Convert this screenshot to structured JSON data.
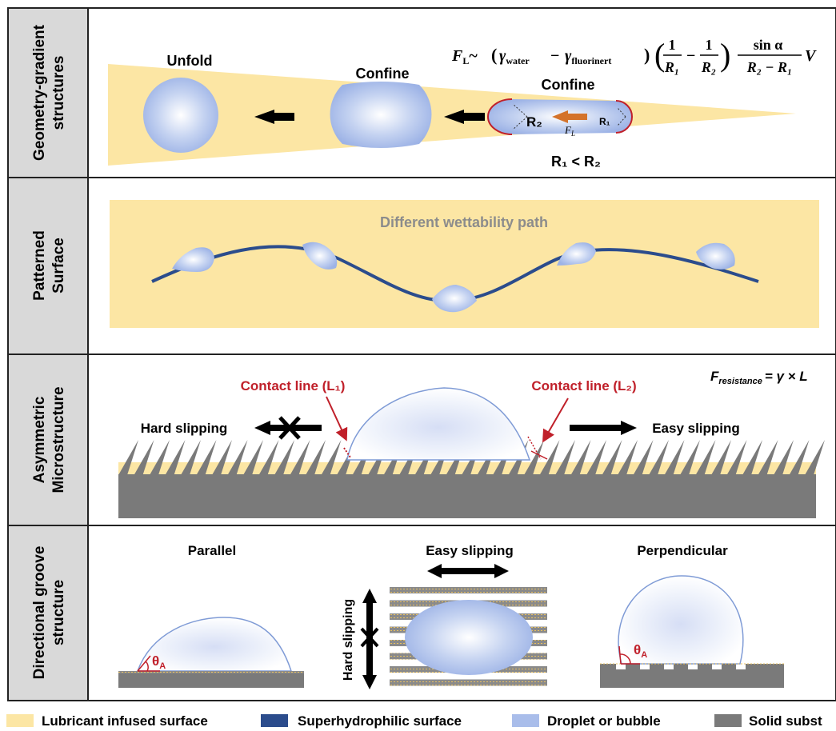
{
  "rows": [
    {
      "label_line1": "Geometry-gradient",
      "label_line2": "structures"
    },
    {
      "label_line1": "Patterned",
      "label_line2": "Surface"
    },
    {
      "label_line1": "Asymmetric",
      "label_line2": "Microstructure"
    },
    {
      "label_line1": "Directional groove",
      "label_line2": "structure"
    }
  ],
  "panel1": {
    "unfold": "Unfold",
    "confine_left": "Confine",
    "confine_right": "Confine",
    "r2_label": "R₂",
    "r1_label": "R₁",
    "force_label": "F",
    "force_sub": "L",
    "relation": "R₁ < R₂",
    "formula": {
      "lhs": "F",
      "lhs_sub": "L",
      "tilde": "~",
      "gamma_water": "γ",
      "water_sub": "water",
      "minus": "−",
      "gamma_fluor": "γ",
      "fluor_sub": "fluorinert",
      "frac1_num": "1",
      "frac1_den": "R₁",
      "frac2_num": "1",
      "frac2_den": "R₂",
      "sin_num": "sin α",
      "sin_den": "R₂ − R₁",
      "v": "V"
    }
  },
  "panel2": {
    "path_title": "Different wettability path"
  },
  "panel3": {
    "contact_left": "Contact line (L₁)",
    "contact_right": "Contact line (L₂)",
    "hard_slipping": "Hard slipping",
    "easy_slipping": "Easy slipping",
    "formula_f": "F",
    "formula_sub": "resistance",
    "formula_rhs": "= γ × L"
  },
  "panel4": {
    "parallel": "Parallel",
    "easy_slipping": "Easy slipping",
    "hard_slipping": "Hard slipping",
    "perpendicular": "Perpendicular",
    "theta_left": "θ",
    "theta_left_sub": "A",
    "theta_right": "θ",
    "theta_right_sub": "A"
  },
  "legend": [
    {
      "label": "Lubricant infused surface",
      "color": "#FCE6A4"
    },
    {
      "label": "Superhydrophilic surface",
      "color": "#2B4C8C"
    },
    {
      "label": "Droplet or bubble",
      "color": "#A9BDEA"
    },
    {
      "label": "Solid subst",
      "color": "#7A7A7A"
    }
  ],
  "colors": {
    "lubricant": "#FCE6A4",
    "superhydrophilic": "#2B4C8C",
    "droplet": "#A9BDEA",
    "solid": "#7A7A7A",
    "accent_red": "#C0202A",
    "arrow_orange": "#D4732B",
    "label_bg": "#D9D9D9"
  }
}
